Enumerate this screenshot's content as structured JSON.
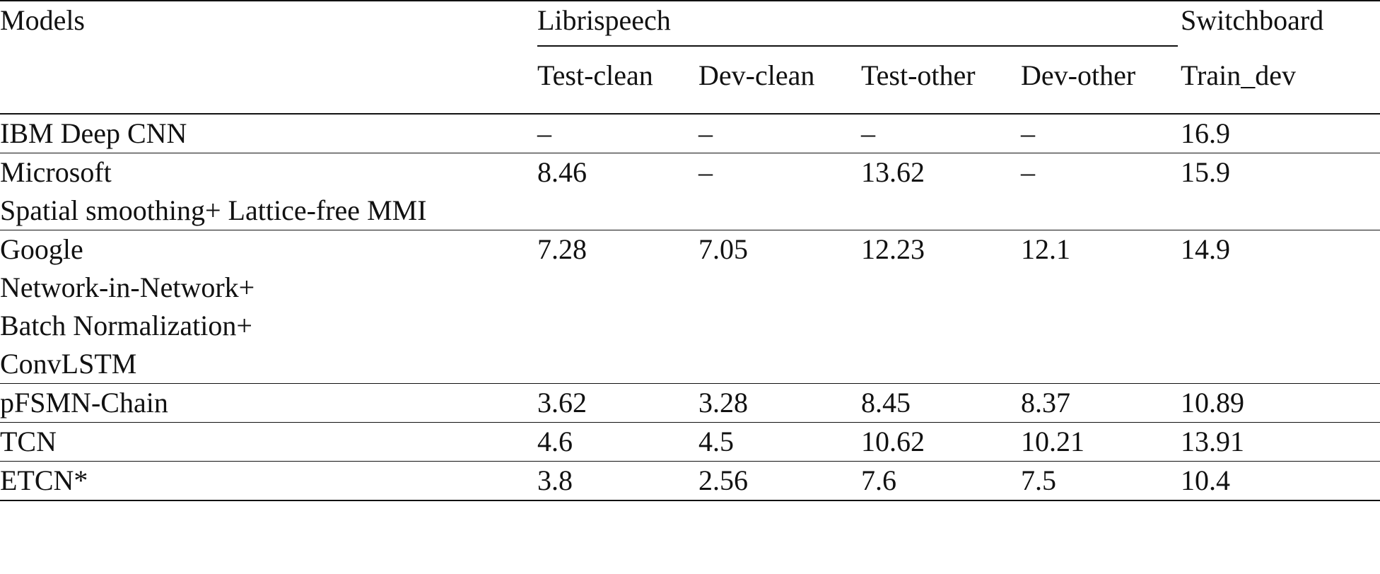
{
  "header": {
    "models": "Models",
    "group1": "Librispeech",
    "group2": "Switchboard",
    "subcols": [
      "Test-clean",
      "Dev-clean",
      "Test-other",
      "Dev-other",
      "Train_dev"
    ]
  },
  "rows": [
    {
      "model": [
        "IBM Deep CNN"
      ],
      "values": [
        "–",
        "–",
        "–",
        "–",
        "16.9"
      ]
    },
    {
      "model": [
        "Microsoft",
        "Spatial smoothing+ Lattice-free MMI"
      ],
      "values": [
        "8.46",
        "–",
        "13.62",
        "–",
        "15.9"
      ]
    },
    {
      "model": [
        "Google",
        "Network-in-Network+",
        "Batch Normalization+",
        "ConvLSTM"
      ],
      "values": [
        "7.28",
        "7.05",
        "12.23",
        "12.1",
        "14.9"
      ]
    },
    {
      "model": [
        "pFSMN-Chain"
      ],
      "values": [
        "3.62",
        "3.28",
        "8.45",
        "8.37",
        "10.89"
      ]
    },
    {
      "model": [
        "TCN"
      ],
      "values": [
        "4.6",
        "4.5",
        "10.62",
        "10.21",
        "13.91"
      ]
    },
    {
      "model": [
        "ETCN*"
      ],
      "values": [
        "3.8",
        "2.56",
        "7.6",
        "7.5",
        "10.4"
      ]
    }
  ]
}
